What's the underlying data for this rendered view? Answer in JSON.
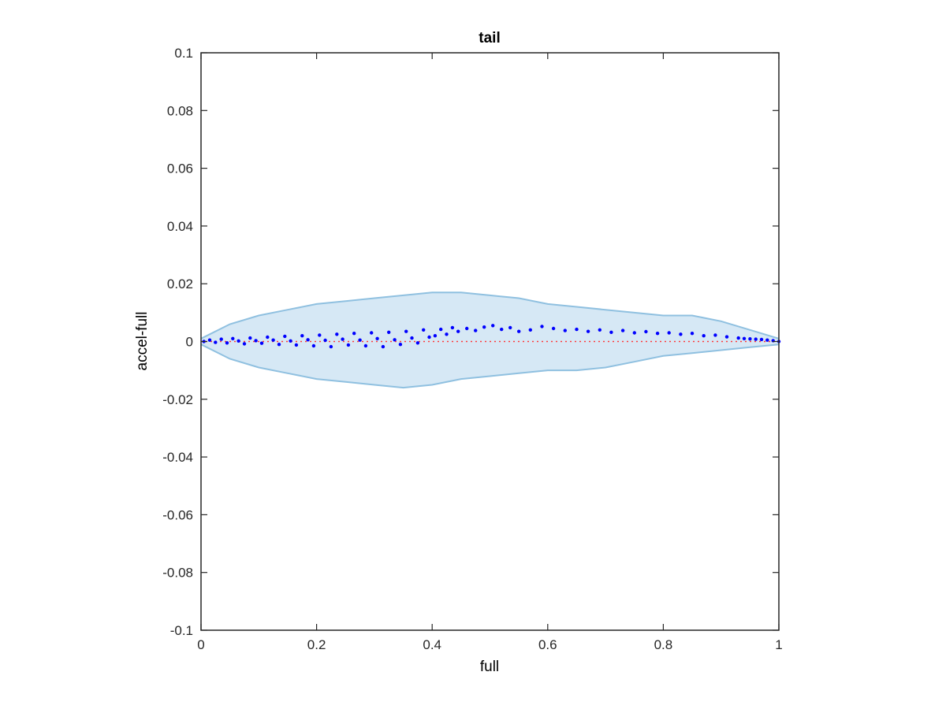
{
  "chart_data": {
    "type": "scatter",
    "title": "tail",
    "xlabel": "full",
    "ylabel": "accel-full",
    "xlim": [
      0,
      1
    ],
    "ylim": [
      -0.1,
      0.1
    ],
    "grid": false,
    "xticks": [
      0,
      0.2,
      0.4,
      0.6,
      0.8,
      1
    ],
    "xtick_labels": [
      "0",
      "0.2",
      "0.4",
      "0.6",
      "0.8",
      "1"
    ],
    "yticks": [
      -0.1,
      -0.08,
      -0.06,
      -0.04,
      -0.02,
      0,
      0.02,
      0.04,
      0.06,
      0.08,
      0.1
    ],
    "ytick_labels": [
      "-0.1",
      "-0.08",
      "-0.06",
      "-0.04",
      "-0.02",
      "0",
      "0.02",
      "0.04",
      "0.06",
      "0.08",
      "0.1"
    ],
    "colors": {
      "band_fill": "#d6e8f5",
      "band_edge": "#8fc0e0",
      "points": "#0000ff",
      "zero_line": "#ff3b3b",
      "axis": "#262626"
    },
    "band": {
      "x": [
        0,
        0.05,
        0.1,
        0.15,
        0.2,
        0.25,
        0.3,
        0.35,
        0.4,
        0.45,
        0.5,
        0.55,
        0.6,
        0.65,
        0.7,
        0.75,
        0.8,
        0.85,
        0.9,
        0.95,
        1.0
      ],
      "upper": [
        0.001,
        0.006,
        0.009,
        0.011,
        0.013,
        0.014,
        0.015,
        0.016,
        0.017,
        0.017,
        0.016,
        0.015,
        0.013,
        0.012,
        0.011,
        0.01,
        0.009,
        0.009,
        0.007,
        0.004,
        0.001
      ],
      "lower": [
        -0.001,
        -0.006,
        -0.009,
        -0.011,
        -0.013,
        -0.014,
        -0.015,
        -0.016,
        -0.015,
        -0.013,
        -0.012,
        -0.011,
        -0.01,
        -0.01,
        -0.009,
        -0.007,
        -0.005,
        -0.004,
        -0.003,
        -0.002,
        -0.001
      ]
    },
    "series": [
      {
        "x": [
          0.005,
          0.015,
          0.025,
          0.035,
          0.045,
          0.055,
          0.065,
          0.075,
          0.085,
          0.095,
          0.105,
          0.115,
          0.125,
          0.135,
          0.145,
          0.155,
          0.165,
          0.175,
          0.185,
          0.195,
          0.205,
          0.215,
          0.225,
          0.235,
          0.245,
          0.255,
          0.265,
          0.275,
          0.285,
          0.295,
          0.305,
          0.315,
          0.325,
          0.335,
          0.345,
          0.355,
          0.365,
          0.375,
          0.385,
          0.395,
          0.405,
          0.415,
          0.425,
          0.435,
          0.445,
          0.46,
          0.475,
          0.49,
          0.505,
          0.52,
          0.535,
          0.55,
          0.57,
          0.59,
          0.61,
          0.63,
          0.65,
          0.67,
          0.69,
          0.71,
          0.73,
          0.75,
          0.77,
          0.79,
          0.81,
          0.83,
          0.85,
          0.87,
          0.89,
          0.91,
          0.93,
          0.94,
          0.95,
          0.96,
          0.97,
          0.98,
          0.99,
          1.0
        ],
        "y": [
          0.0,
          0.0005,
          -0.0003,
          0.0008,
          -0.0005,
          0.001,
          0.0002,
          -0.0008,
          0.0012,
          0.0003,
          -0.0006,
          0.0015,
          0.0005,
          -0.001,
          0.0018,
          0.0002,
          -0.0012,
          0.002,
          0.0006,
          -0.0015,
          0.0022,
          0.0004,
          -0.0018,
          0.0025,
          0.0008,
          -0.0012,
          0.0028,
          0.0005,
          -0.0015,
          0.003,
          0.001,
          -0.0018,
          0.0032,
          0.0006,
          -0.001,
          0.0035,
          0.0012,
          -0.0005,
          0.004,
          0.0015,
          0.002,
          0.0042,
          0.0025,
          0.0048,
          0.0035,
          0.0045,
          0.0038,
          0.005,
          0.0055,
          0.0042,
          0.0048,
          0.0035,
          0.004,
          0.0052,
          0.0045,
          0.0038,
          0.0042,
          0.0035,
          0.004,
          0.0032,
          0.0038,
          0.003,
          0.0034,
          0.0028,
          0.003,
          0.0025,
          0.0028,
          0.002,
          0.0022,
          0.0016,
          0.0012,
          0.001,
          0.0009,
          0.0008,
          0.0007,
          0.0005,
          0.0003,
          0.0
        ]
      }
    ]
  }
}
